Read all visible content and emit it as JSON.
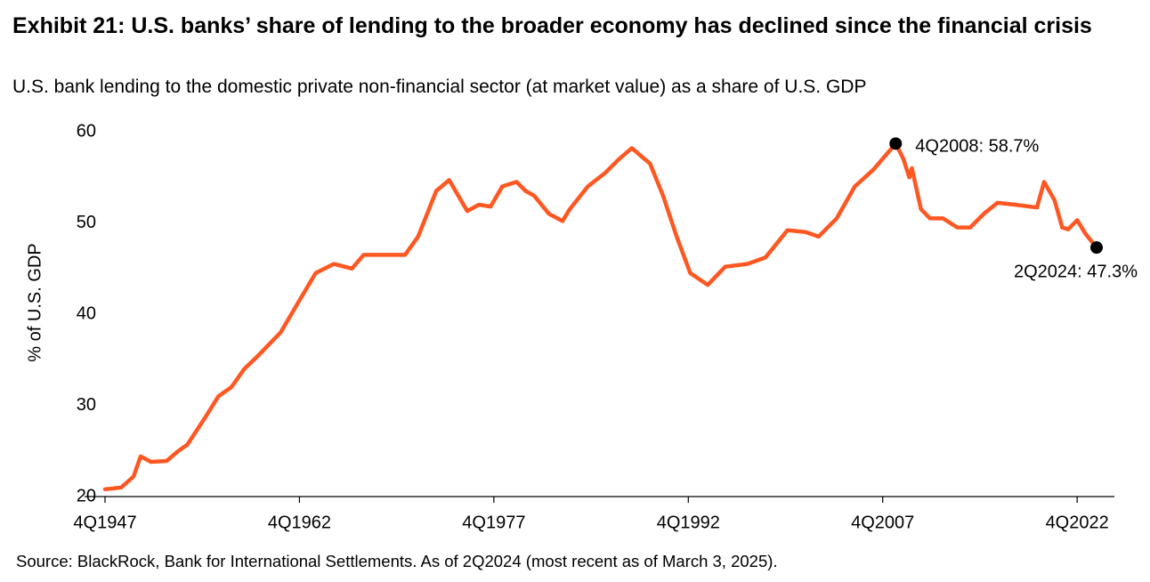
{
  "chart_data": {
    "type": "line",
    "title": "Exhibit 21: U.S. banks’ share of lending to the broader economy has declined since the financial crisis",
    "subtitle": "U.S. bank lending to the domestic private non-financial sector (at market value) as a share of U.S. GDP",
    "y_label": "% of U.S. GDP",
    "source": "Source: BlackRock, Bank for International Settlements. As of 2Q2024 (most recent as of March 3, 2025).",
    "color": "#ff5722",
    "x": [
      1947.75,
      1949.0,
      1949.95,
      1950.5,
      1951.3,
      1952.5,
      1953.4,
      1954.1,
      1955.4,
      1956.5,
      1957.5,
      1958.5,
      1959.6,
      1961.3,
      1962.75,
      1964.0,
      1965.4,
      1966.8,
      1967.7,
      1969.2,
      1970.9,
      1971.9,
      1973.3,
      1974.3,
      1975.7,
      1976.6,
      1977.5,
      1978.4,
      1979.5,
      1980.2,
      1980.85,
      1982.0,
      1983.05,
      1983.6,
      1985.0,
      1986.35,
      1987.4,
      1988.4,
      1989.8,
      1990.8,
      1991.85,
      1992.9,
      1994.25,
      1995.6,
      1997.3,
      1998.7,
      2000.4,
      2001.8,
      2002.8,
      2004.2,
      2005.6,
      2007.0,
      2008.75,
      2009.35,
      2009.8,
      2010.0,
      2010.7,
      2011.4,
      2012.4,
      2013.5,
      2014.5,
      2015.55,
      2016.6,
      2017.95,
      2019.65,
      2020.2,
      2021.0,
      2021.6,
      2022.05,
      2022.75,
      2023.4,
      2024.25
    ],
    "values": [
      20.8,
      21.0,
      22.2,
      24.4,
      23.8,
      23.9,
      25.0,
      25.7,
      28.5,
      31.0,
      32.0,
      34.0,
      35.5,
      38.0,
      41.5,
      44.5,
      45.5,
      45.0,
      46.5,
      46.5,
      46.5,
      48.5,
      53.5,
      54.7,
      51.3,
      52.0,
      51.8,
      54.0,
      54.5,
      53.5,
      53.0,
      51.0,
      50.2,
      51.5,
      54.0,
      55.5,
      57.0,
      58.2,
      56.5,
      53.0,
      48.5,
      44.5,
      43.2,
      45.2,
      45.5,
      46.2,
      49.2,
      49.0,
      48.5,
      50.5,
      54.0,
      55.8,
      58.7,
      57.0,
      55.0,
      56.0,
      51.5,
      50.5,
      50.5,
      49.5,
      49.5,
      51.0,
      52.2,
      52.0,
      51.7,
      54.5,
      52.5,
      49.5,
      49.3,
      50.3,
      48.8,
      47.3
    ],
    "xlim": [
      1947.75,
      2024.25
    ],
    "xticks": [
      {
        "value": 1947.75,
        "label": "4Q1947"
      },
      {
        "value": 1962.75,
        "label": "4Q1962"
      },
      {
        "value": 1977.75,
        "label": "4Q1977"
      },
      {
        "value": 1992.75,
        "label": "4Q1992"
      },
      {
        "value": 2007.75,
        "label": "4Q2007"
      },
      {
        "value": 2022.75,
        "label": "4Q2022"
      }
    ],
    "ylim": [
      20,
      60
    ],
    "yticks": [
      20,
      30,
      40,
      50,
      60
    ],
    "grid": false,
    "annotations": [
      {
        "text": "4Q2008: 58.7%",
        "x": 2008.75,
        "y": 58.7
      },
      {
        "text": "2Q2024: 47.3%",
        "x": 2024.25,
        "y": 47.3
      }
    ]
  }
}
